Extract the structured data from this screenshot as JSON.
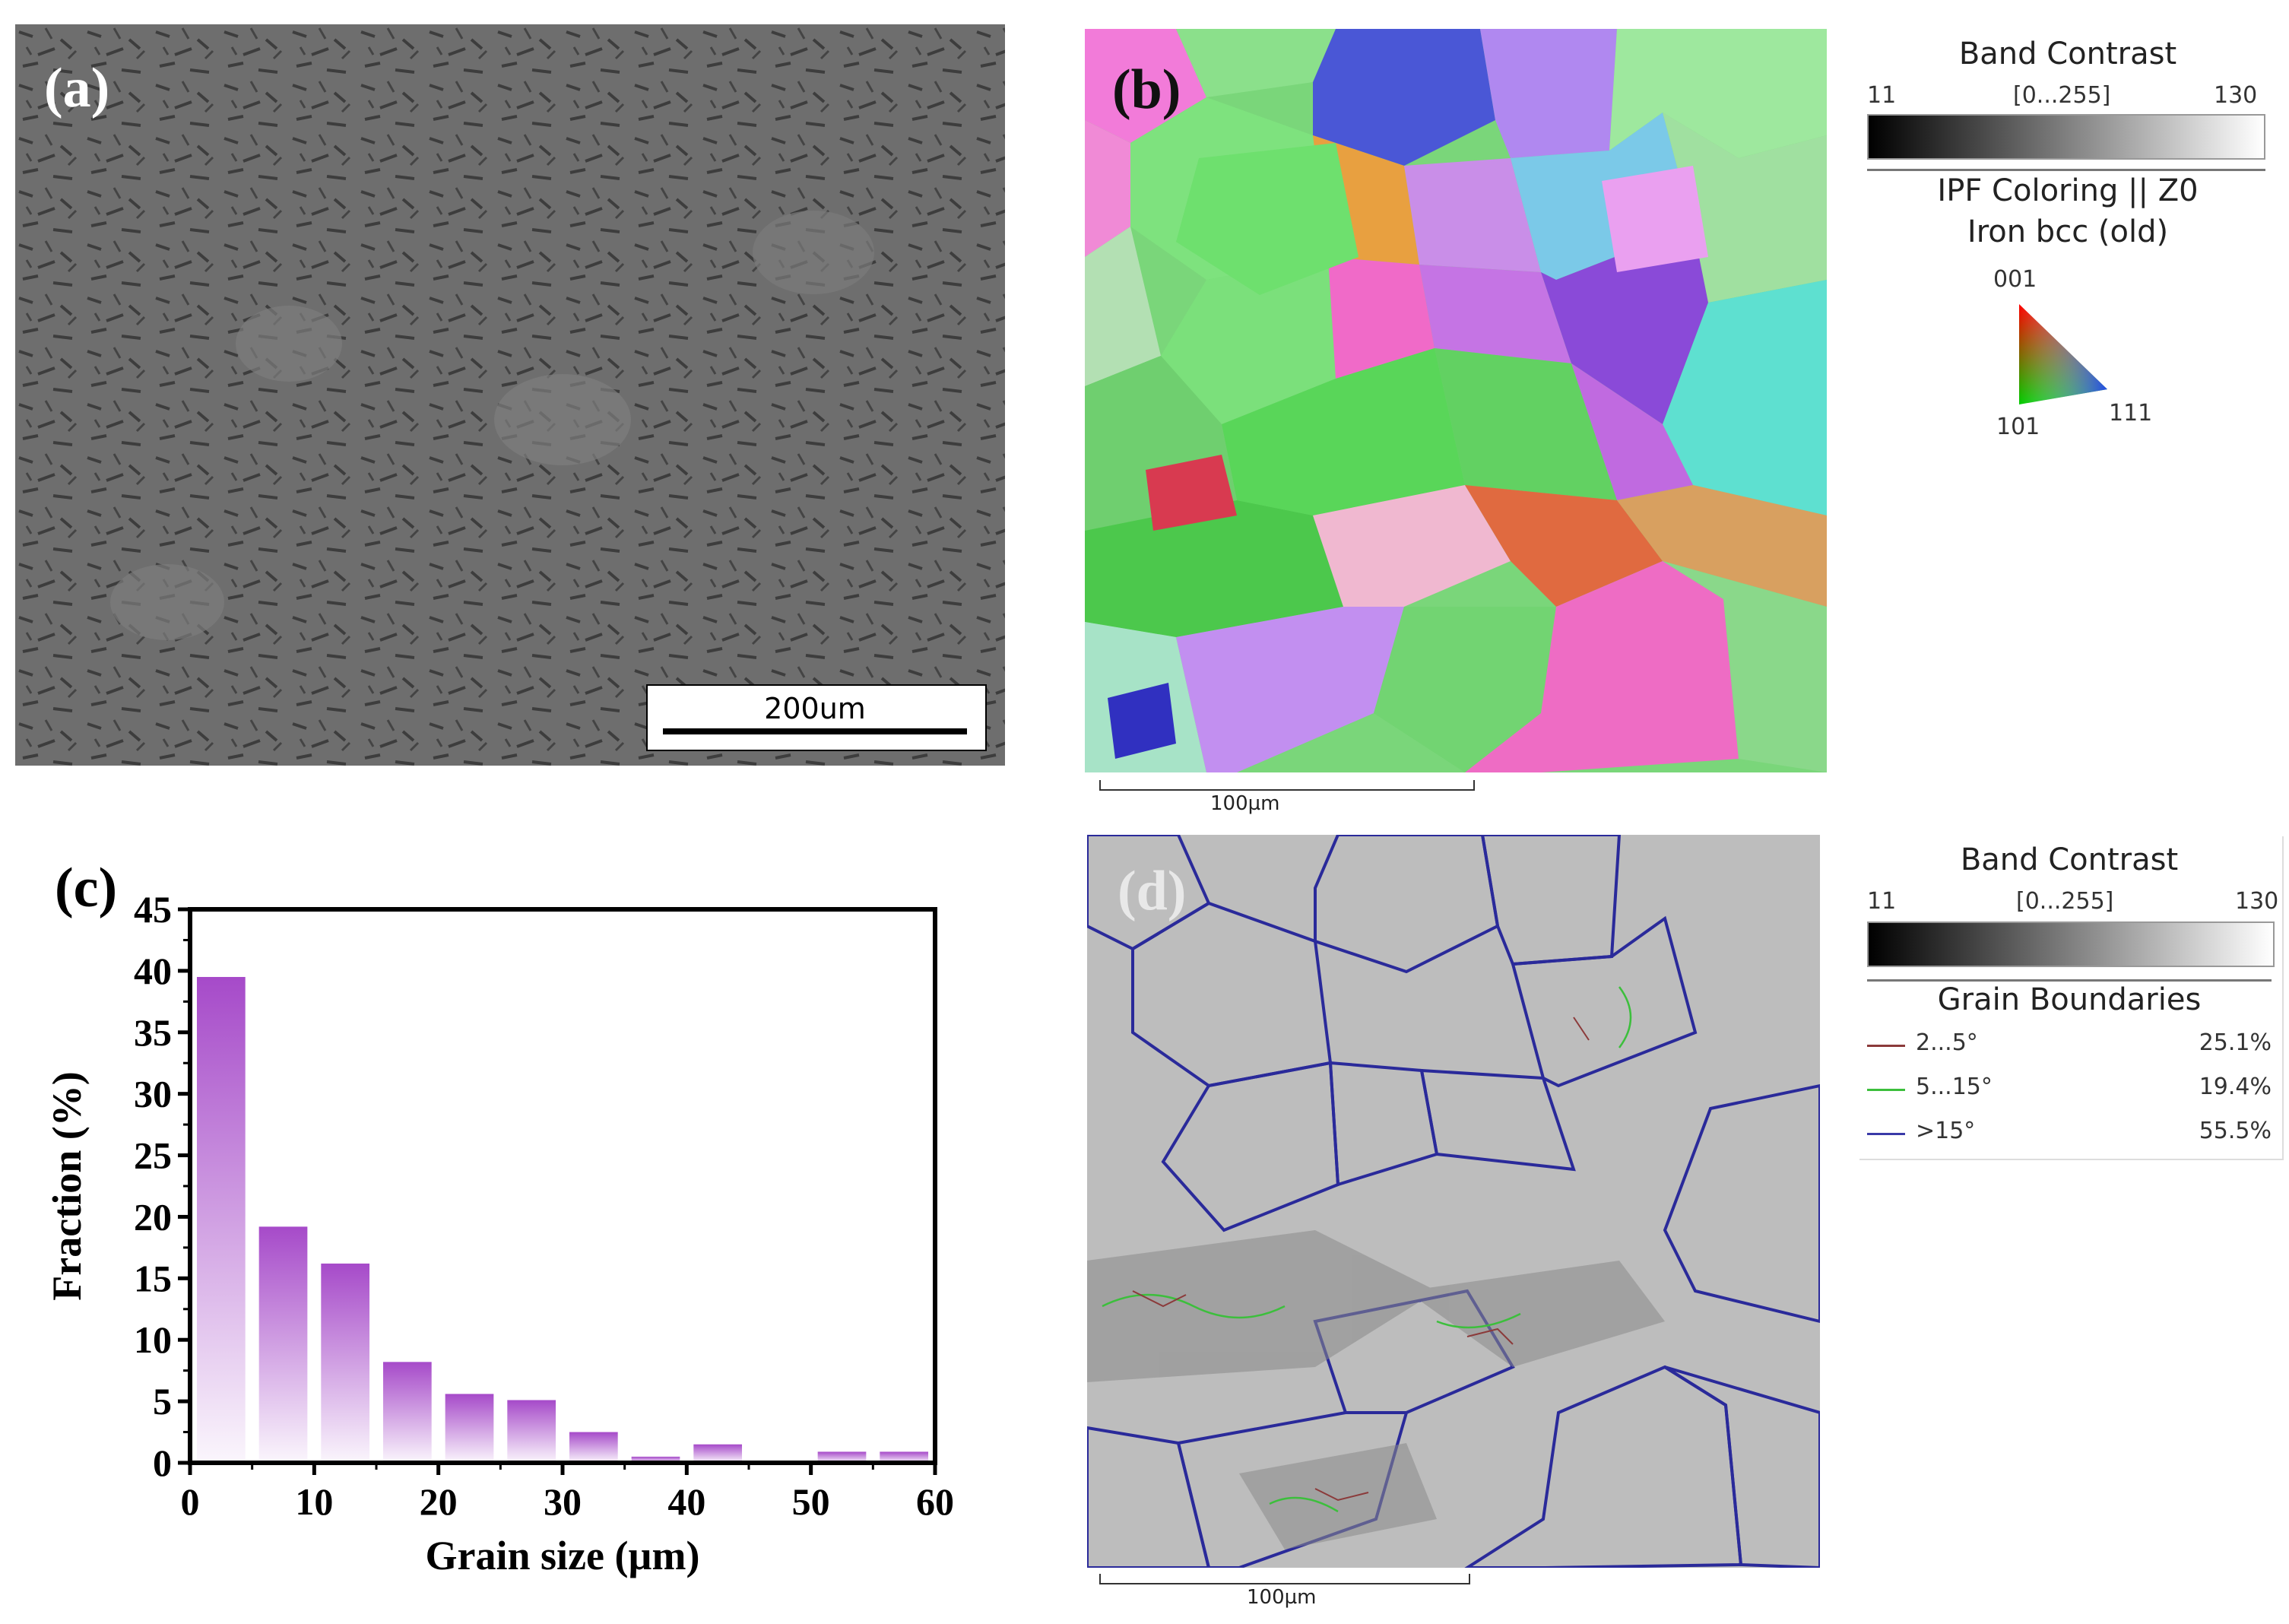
{
  "panels": {
    "a": {
      "label": "(a)",
      "scalebar": "200um"
    },
    "b": {
      "label": "(b)",
      "scalebar": "100µm"
    },
    "c": {
      "label": "(c)"
    },
    "d": {
      "label": "(d)",
      "scalebar": "100µm"
    }
  },
  "legend_b": {
    "band_contrast_title": "Band Contrast",
    "min": "11",
    "range": "[0...255]",
    "max": "130",
    "ipf_title": "IPF Coloring || Z0",
    "phase": "Iron bcc (old)",
    "pole_001": "001",
    "pole_101": "101",
    "pole_111": "111"
  },
  "legend_d": {
    "band_contrast_title": "Band Contrast",
    "min": "11",
    "range": "[0...255]",
    "max": "130",
    "gb_title": "Grain Boundaries",
    "rows": [
      {
        "label": "2...5°",
        "value": "25.1%",
        "color": "#8b3a3a"
      },
      {
        "label": "5...15°",
        "value": "19.4%",
        "color": "#3cbf3c"
      },
      {
        "label": ">15°",
        "value": "55.5%",
        "color": "#3a3aa8"
      }
    ]
  },
  "chart_data": {
    "type": "bar",
    "x_centers": [
      2.5,
      7.5,
      12.5,
      17.5,
      22.5,
      27.5,
      32.5,
      37.5,
      42.5,
      47.5,
      52.5,
      57.5
    ],
    "values": [
      39.5,
      19.2,
      16.2,
      8.2,
      5.6,
      5.1,
      2.5,
      0.5,
      1.5,
      0,
      0.9,
      0.9
    ],
    "xlabel": "Grain size (µm)",
    "ylabel": "Fraction (%)",
    "xlim": [
      0,
      60
    ],
    "ylim": [
      0,
      45
    ],
    "xticks": [
      "0",
      "10",
      "20",
      "30",
      "40",
      "50",
      "60"
    ],
    "yticks": [
      "0",
      "5",
      "10",
      "15",
      "20",
      "25",
      "30",
      "35",
      "40",
      "45"
    ],
    "bar_color": "#a64ac9"
  }
}
